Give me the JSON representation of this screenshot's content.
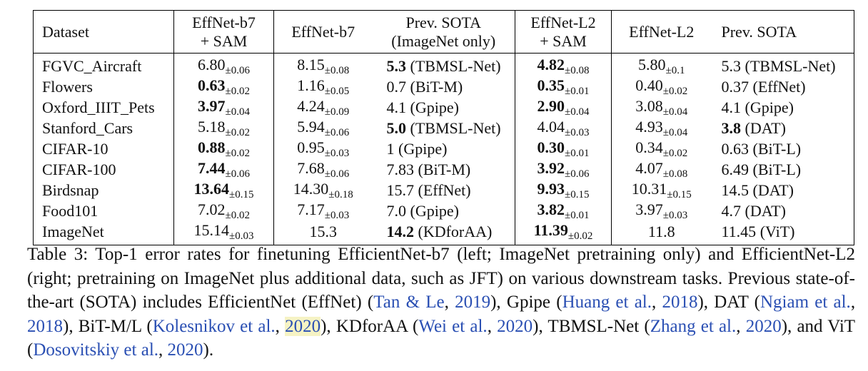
{
  "table": {
    "headers": [
      [
        "Dataset"
      ],
      [
        "EffNet-b7",
        "+ SAM"
      ],
      [
        "EffNet-b7"
      ],
      [
        "Prev. SOTA",
        "(ImageNet only)"
      ],
      [
        "EffNet-L2",
        "+ SAM"
      ],
      [
        "EffNet-L2"
      ],
      [
        "Prev. SOTA"
      ]
    ],
    "rows": [
      {
        "dataset": "FGVC_Aircraft",
        "b7sam": {
          "v": "6.80",
          "pm": "±0.06",
          "bold": false
        },
        "b7": {
          "v": "8.15",
          "pm": "±0.08",
          "bold": false
        },
        "prev1": {
          "v": "5.3",
          "ref": " (TBMSL-Net)",
          "bold": true
        },
        "l2sam": {
          "v": "4.82",
          "pm": "±0.08",
          "bold": true
        },
        "l2": {
          "v": "5.80",
          "pm": "±0.1",
          "bold": false
        },
        "prev2": {
          "v": "5.3",
          "ref": " (TBMSL-Net)",
          "bold": false
        }
      },
      {
        "dataset": "Flowers",
        "b7sam": {
          "v": "0.63",
          "pm": "±0.02",
          "bold": true
        },
        "b7": {
          "v": "1.16",
          "pm": "±0.05",
          "bold": false
        },
        "prev1": {
          "v": "0.7",
          "ref": " (BiT-M)",
          "bold": false
        },
        "l2sam": {
          "v": "0.35",
          "pm": "±0.01",
          "bold": true
        },
        "l2": {
          "v": "0.40",
          "pm": "±0.02",
          "bold": false
        },
        "prev2": {
          "v": "0.37",
          "ref": " (EffNet)",
          "bold": false
        }
      },
      {
        "dataset": "Oxford_IIIT_Pets",
        "b7sam": {
          "v": "3.97",
          "pm": "±0.04",
          "bold": true
        },
        "b7": {
          "v": "4.24",
          "pm": "±0.09",
          "bold": false
        },
        "prev1": {
          "v": "4.1",
          "ref": " (Gpipe)",
          "bold": false
        },
        "l2sam": {
          "v": "2.90",
          "pm": "±0.04",
          "bold": true
        },
        "l2": {
          "v": "3.08",
          "pm": "±0.04",
          "bold": false
        },
        "prev2": {
          "v": "4.1",
          "ref": " (Gpipe)",
          "bold": false
        }
      },
      {
        "dataset": "Stanford_Cars",
        "b7sam": {
          "v": "5.18",
          "pm": "±0.02",
          "bold": false
        },
        "b7": {
          "v": "5.94",
          "pm": "±0.06",
          "bold": false
        },
        "prev1": {
          "v": "5.0",
          "ref": " (TBMSL-Net)",
          "bold": true
        },
        "l2sam": {
          "v": "4.04",
          "pm": "±0.03",
          "bold": false
        },
        "l2": {
          "v": "4.93",
          "pm": "±0.04",
          "bold": false
        },
        "prev2": {
          "v": "3.8",
          "ref": " (DAT)",
          "bold": true
        }
      },
      {
        "dataset": "CIFAR-10",
        "b7sam": {
          "v": "0.88",
          "pm": "±0.02",
          "bold": true
        },
        "b7": {
          "v": "0.95",
          "pm": "±0.03",
          "bold": false
        },
        "prev1": {
          "v": "1",
          "ref": " (Gpipe)",
          "bold": false
        },
        "l2sam": {
          "v": "0.30",
          "pm": "±0.01",
          "bold": true
        },
        "l2": {
          "v": "0.34",
          "pm": "±0.02",
          "bold": false
        },
        "prev2": {
          "v": "0.63",
          "ref": " (BiT-L)",
          "bold": false
        }
      },
      {
        "dataset": "CIFAR-100",
        "b7sam": {
          "v": "7.44",
          "pm": "±0.06",
          "bold": true
        },
        "b7": {
          "v": "7.68",
          "pm": "±0.06",
          "bold": false
        },
        "prev1": {
          "v": "7.83",
          "ref": " (BiT-M)",
          "bold": false
        },
        "l2sam": {
          "v": "3.92",
          "pm": "±0.06",
          "bold": true
        },
        "l2": {
          "v": "4.07",
          "pm": "±0.08",
          "bold": false
        },
        "prev2": {
          "v": "6.49",
          "ref": " (BiT-L)",
          "bold": false
        }
      },
      {
        "dataset": "Birdsnap",
        "b7sam": {
          "v": "13.64",
          "pm": "±0.15",
          "bold": true
        },
        "b7": {
          "v": "14.30",
          "pm": "±0.18",
          "bold": false
        },
        "prev1": {
          "v": "15.7",
          "ref": " (EffNet)",
          "bold": false
        },
        "l2sam": {
          "v": "9.93",
          "pm": "±0.15",
          "bold": true
        },
        "l2": {
          "v": "10.31",
          "pm": "±0.15",
          "bold": false
        },
        "prev2": {
          "v": "14.5",
          "ref": " (DAT)",
          "bold": false
        }
      },
      {
        "dataset": "Food101",
        "b7sam": {
          "v": "7.02",
          "pm": "±0.02",
          "bold": false
        },
        "b7": {
          "v": "7.17",
          "pm": "±0.03",
          "bold": false
        },
        "prev1": {
          "v": "7.0",
          "ref": " (Gpipe)",
          "bold": false
        },
        "l2sam": {
          "v": "3.82",
          "pm": "±0.01",
          "bold": true
        },
        "l2": {
          "v": "3.97",
          "pm": "±0.03",
          "bold": false
        },
        "prev2": {
          "v": "4.7",
          "ref": " (DAT)",
          "bold": false
        }
      },
      {
        "dataset": "ImageNet",
        "b7sam": {
          "v": "15.14",
          "pm": "±0.03",
          "bold": false
        },
        "b7": {
          "v": "15.3",
          "pm": "",
          "bold": false
        },
        "prev1": {
          "v": "14.2",
          "ref": " (KDforAA)",
          "bold": true
        },
        "l2sam": {
          "v": "11.39",
          "pm": "±0.02",
          "bold": true
        },
        "l2": {
          "v": "11.8",
          "pm": "",
          "bold": false
        },
        "prev2": {
          "v": "11.45",
          "ref": " (ViT)",
          "bold": false
        }
      }
    ]
  },
  "caption": [
    {
      "t": "Table 3: Top-1 error rates for finetuning EfficientNet-b7 (left; ImageNet pretraining only) and EfficientNet-L2 (right; pretraining on ImageNet plus additional data, such as JFT) on various downstream tasks. Previous state-of-the-art (SOTA) includes EfficientNet (EffNet) ("
    },
    {
      "t": "Tan & Le",
      "cite": true
    },
    {
      "t": ", "
    },
    {
      "t": "2019",
      "cite": true
    },
    {
      "t": "), Gpipe ("
    },
    {
      "t": "Huang et al.",
      "cite": true
    },
    {
      "t": ", "
    },
    {
      "t": "2018",
      "cite": true
    },
    {
      "t": "), DAT ("
    },
    {
      "t": "Ngiam et al.",
      "cite": true
    },
    {
      "t": ", "
    },
    {
      "t": "2018",
      "cite": true
    },
    {
      "t": "), BiT-M/L ("
    },
    {
      "t": "Kolesnikov et al.",
      "cite": true
    },
    {
      "t": ", "
    },
    {
      "t": "2020",
      "cite": true,
      "hl": true
    },
    {
      "t": "), KDforAA ("
    },
    {
      "t": "Wei et al.",
      "cite": true
    },
    {
      "t": ", "
    },
    {
      "t": "2020",
      "cite": true
    },
    {
      "t": "), TBMSL-Net ("
    },
    {
      "t": "Zhang et al.",
      "cite": true
    },
    {
      "t": ", "
    },
    {
      "t": "2020",
      "cite": true
    },
    {
      "t": "), and ViT ("
    },
    {
      "t": "Dosovitskiy et al.",
      "cite": true
    },
    {
      "t": ", "
    },
    {
      "t": "2020",
      "cite": true
    },
    {
      "t": ")."
    }
  ]
}
